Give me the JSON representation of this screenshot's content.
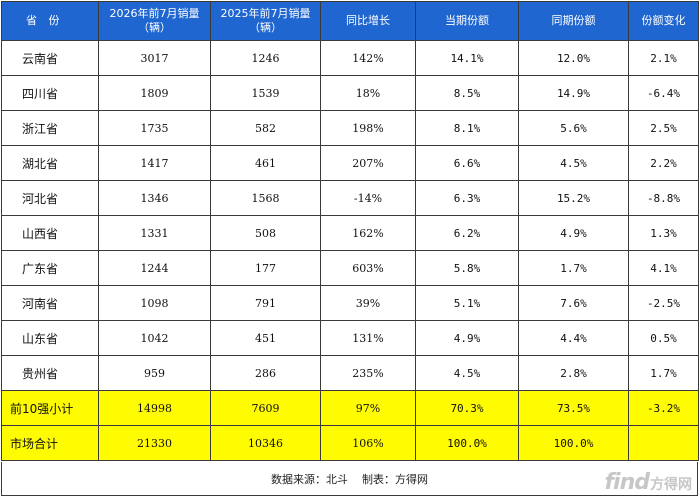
{
  "table": {
    "headers": [
      "省 份",
      "2026年前7月销量\n（辆）",
      "2025年前7月销量\n（辆）",
      "同比增长",
      "当期份额",
      "同期份额",
      "份额变化"
    ],
    "rows": [
      [
        "云南省",
        "3017",
        "1246",
        "142%",
        "14.1%",
        "12.0%",
        "2.1%"
      ],
      [
        "四川省",
        "1809",
        "1539",
        "18%",
        "8.5%",
        "14.9%",
        "-6.4%"
      ],
      [
        "浙江省",
        "1735",
        "582",
        "198%",
        "8.1%",
        "5.6%",
        "2.5%"
      ],
      [
        "湖北省",
        "1417",
        "461",
        "207%",
        "6.6%",
        "4.5%",
        "2.2%"
      ],
      [
        "河北省",
        "1346",
        "1568",
        "-14%",
        "6.3%",
        "15.2%",
        "-8.8%"
      ],
      [
        "山西省",
        "1331",
        "508",
        "162%",
        "6.2%",
        "4.9%",
        "1.3%"
      ],
      [
        "广东省",
        "1244",
        "177",
        "603%",
        "5.8%",
        "1.7%",
        "4.1%"
      ],
      [
        "河南省",
        "1098",
        "791",
        "39%",
        "5.1%",
        "7.6%",
        "-2.5%"
      ],
      [
        "山东省",
        "1042",
        "451",
        "131%",
        "4.9%",
        "4.4%",
        "0.5%"
      ],
      [
        "贵州省",
        "959",
        "286",
        "235%",
        "4.5%",
        "2.8%",
        "1.7%"
      ]
    ],
    "summary_rows": [
      [
        "前10强小计",
        "14998",
        "7609",
        "97%",
        "70.3%",
        "73.5%",
        "-3.2%"
      ],
      [
        "市场合计",
        "21330",
        "10346",
        "106%",
        "100.0%",
        "100.0%",
        ""
      ]
    ]
  },
  "footer": {
    "source": "数据来源：北斗",
    "maker": "制表：方得网"
  },
  "watermark": {
    "logo_en": "find",
    "logo_cn": "方得网"
  },
  "colors": {
    "header_bg": "#1f66d1",
    "header_text": "#ffffff",
    "summary_bg": "#fffb00",
    "border": "#3a3a3a"
  }
}
